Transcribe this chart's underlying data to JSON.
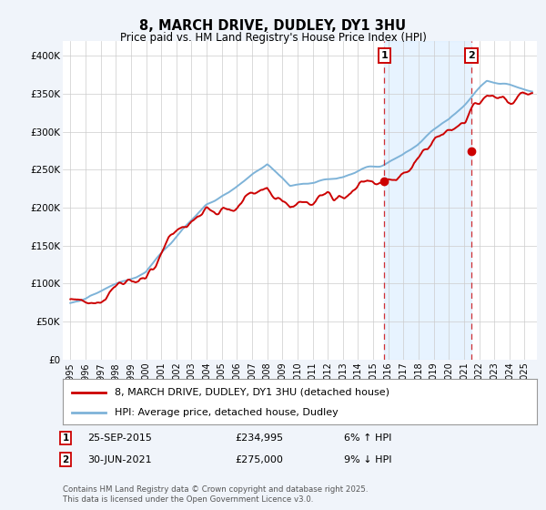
{
  "title": "8, MARCH DRIVE, DUDLEY, DY1 3HU",
  "subtitle": "Price paid vs. HM Land Registry's House Price Index (HPI)",
  "ylabel_ticks": [
    "£0",
    "£50K",
    "£100K",
    "£150K",
    "£200K",
    "£250K",
    "£300K",
    "£350K",
    "£400K"
  ],
  "ylim": [
    0,
    420000
  ],
  "hpi_color": "#7eb3d8",
  "hpi_fill_color": "#ddeeff",
  "price_color": "#cc0000",
  "marker1_date_x": 2015.73,
  "marker1_price": 234995,
  "marker1_label": "25-SEP-2015",
  "marker1_text": "£234,995",
  "marker1_pct": "6% ↑ HPI",
  "marker2_date_x": 2021.49,
  "marker2_price": 275000,
  "marker2_label": "30-JUN-2021",
  "marker2_text": "£275,000",
  "marker2_pct": "9% ↓ HPI",
  "legend_line1": "8, MARCH DRIVE, DUDLEY, DY1 3HU (detached house)",
  "legend_line2": "HPI: Average price, detached house, Dudley",
  "footnote": "Contains HM Land Registry data © Crown copyright and database right 2025.\nThis data is licensed under the Open Government Licence v3.0.",
  "bg_color": "#f0f4fa",
  "plot_bg": "#ffffff",
  "xmin": 1994.5,
  "xmax": 2025.8
}
